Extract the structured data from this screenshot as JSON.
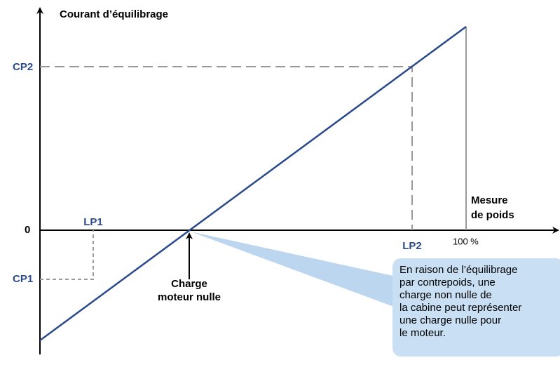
{
  "axes": {
    "y_title": "Courant d’équilibrage",
    "x_title": [
      "Mesure",
      "de poids"
    ]
  },
  "y_labels": {
    "cp2": "CP2",
    "zero": "0",
    "cp1": "CP1"
  },
  "x_labels": {
    "lp1": "LP1",
    "lp2": "LP2",
    "full": "100 %"
  },
  "zero_point": [
    "Charge",
    "moteur nulle"
  ],
  "callout": [
    "En raison de l’équilibrage",
    "par contrepoids, une",
    "charge non nulle de",
    "la cabine peut représenter",
    "une charge nulle pour",
    "le moteur."
  ]
}
